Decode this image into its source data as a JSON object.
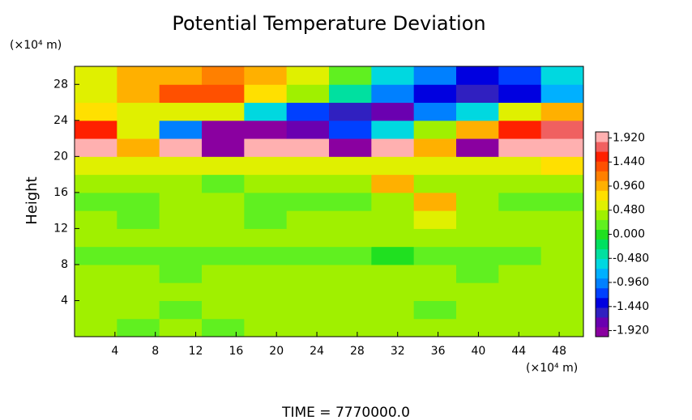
{
  "chart_data": {
    "type": "heatmap",
    "title": "Potential Temperature Deviation",
    "x_unit": "(×10⁴ m)",
    "y_unit": "(×10⁴ m)",
    "ylabel": "Height",
    "footer": "TIME = 7770000.0",
    "x": [
      2.1,
      6.3,
      10.5,
      14.7,
      18.9,
      23.1,
      27.3,
      31.5,
      35.7,
      39.9,
      44.1,
      48.3
    ],
    "y": [
      1,
      3,
      5,
      7,
      9,
      11,
      13,
      15,
      17,
      19,
      21,
      23,
      25,
      27,
      29
    ],
    "z": [
      [
        0.4,
        0.2,
        0.3,
        0.2,
        0.3,
        0.3,
        0.3,
        0.3,
        0.3,
        0.3,
        0.3,
        0.3
      ],
      [
        0.3,
        0.3,
        0.2,
        0.3,
        0.3,
        0.3,
        0.3,
        0.3,
        0.2,
        0.3,
        0.3,
        0.3
      ],
      [
        0.3,
        0.3,
        0.3,
        0.3,
        0.3,
        0.3,
        0.3,
        0.3,
        0.3,
        0.3,
        0.3,
        0.3
      ],
      [
        0.3,
        0.3,
        0.2,
        0.3,
        0.3,
        0.3,
        0.3,
        0.3,
        0.3,
        0.2,
        0.3,
        0.3
      ],
      [
        0.1,
        0.1,
        0.1,
        0.2,
        0.1,
        0.1,
        0.1,
        0.0,
        0.1,
        0.1,
        0.2,
        0.3
      ],
      [
        0.3,
        0.3,
        0.3,
        0.3,
        0.3,
        0.3,
        0.3,
        0.3,
        0.3,
        0.3,
        0.3,
        0.3
      ],
      [
        0.3,
        0.2,
        0.3,
        0.3,
        0.2,
        0.3,
        0.3,
        0.4,
        0.6,
        0.4,
        0.3,
        0.3
      ],
      [
        0.2,
        0.2,
        0.3,
        0.3,
        0.2,
        0.2,
        0.2,
        0.3,
        0.9,
        0.4,
        0.2,
        0.2
      ],
      [
        0.3,
        0.3,
        0.3,
        0.2,
        0.3,
        0.3,
        0.3,
        1.0,
        0.3,
        0.3,
        0.3,
        0.3
      ],
      [
        0.6,
        0.5,
        0.5,
        0.6,
        0.5,
        0.6,
        0.5,
        0.5,
        0.6,
        0.5,
        0.5,
        0.7
      ],
      [
        1.9,
        1.0,
        1.9,
        -1.9,
        1.9,
        1.9,
        -1.9,
        1.9,
        1.0,
        -1.9,
        1.9,
        1.9
      ],
      [
        1.5,
        0.5,
        -1.0,
        -1.9,
        -1.9,
        -1.8,
        -1.2,
        -0.5,
        0.3,
        1.0,
        1.6,
        1.8
      ],
      [
        0.8,
        0.5,
        0.6,
        0.5,
        -0.5,
        -1.2,
        -1.6,
        -1.8,
        -1.0,
        -0.5,
        0.5,
        1.0
      ],
      [
        0.5,
        1.0,
        1.3,
        1.4,
        0.8,
        0.3,
        -0.3,
        -0.9,
        -1.3,
        -1.6,
        -1.4,
        -0.8
      ],
      [
        0.5,
        1.0,
        1.0,
        1.2,
        1.0,
        0.5,
        0.2,
        -0.5,
        -1.0,
        -1.4,
        -1.2,
        -0.6
      ]
    ],
    "xlim": [
      0,
      50.4
    ],
    "ylim": [
      0,
      30
    ],
    "xticks": [
      4,
      8,
      12,
      16,
      20,
      24,
      28,
      32,
      36,
      40,
      44,
      48
    ],
    "yticks": [
      4,
      8,
      12,
      16,
      20,
      24,
      28
    ],
    "clim": [
      -2.04,
      2.04
    ],
    "colorbar_ticks": [
      {
        "value": 1.92,
        "label": "1.920"
      },
      {
        "value": 1.44,
        "label": "1.440"
      },
      {
        "value": 0.96,
        "label": "0.960"
      },
      {
        "value": 0.48,
        "label": "0.480"
      },
      {
        "value": 0,
        "label": "0.000"
      },
      {
        "value": -0.48,
        "label": "-0.480"
      },
      {
        "value": -0.96,
        "label": "-0.960"
      },
      {
        "value": -1.44,
        "label": "-1.440"
      },
      {
        "value": -1.92,
        "label": "-1.920"
      }
    ],
    "colors": [
      "#8a00a0",
      "#6a00b0",
      "#3020c0",
      "#0000e0",
      "#0040ff",
      "#0080ff",
      "#00b0ff",
      "#00d8e0",
      "#00e0a0",
      "#00e060",
      "#20e020",
      "#60f020",
      "#a0f000",
      "#e0f000",
      "#ffe000",
      "#ffb000",
      "#ff8000",
      "#ff5000",
      "#ff2000",
      "#f06060",
      "#ffb0b0"
    ]
  }
}
